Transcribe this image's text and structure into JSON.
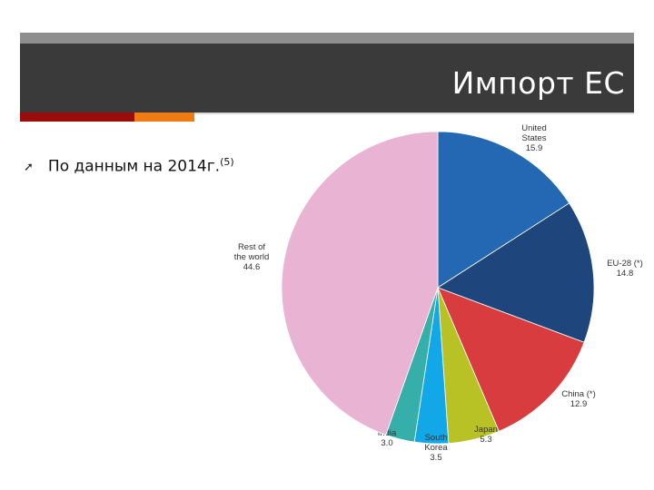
{
  "slide": {
    "title": "Импорт ЕС",
    "bullet_text": "По данным на 2014г.",
    "bullet_sup": "(5)"
  },
  "colors": {
    "title_bar": "#3a3a3a",
    "accent_red": "#9b0d0d",
    "accent_orange": "#f07b12"
  },
  "chart_data": {
    "type": "pie",
    "title": "",
    "slices": [
      {
        "name": "United States",
        "label_lines": [
          "United",
          "States"
        ],
        "value": 15.9,
        "value_text": "15.9",
        "color": "#2468b4"
      },
      {
        "name": "EU-28 (*)",
        "label_lines": [
          "EU-28 (*)"
        ],
        "value": 14.8,
        "value_text": "14.8",
        "color": "#1f467c"
      },
      {
        "name": "China (*)",
        "label_lines": [
          "China (*)"
        ],
        "value": 12.9,
        "value_text": "12.9",
        "color": "#d93c3f"
      },
      {
        "name": "Japan",
        "label_lines": [
          "Japan"
        ],
        "value": 5.3,
        "value_text": "5.3",
        "color": "#b8c224"
      },
      {
        "name": "South Korea",
        "label_lines": [
          "South",
          "Korea"
        ],
        "value": 3.5,
        "value_text": "3.5",
        "color": "#12a7e6"
      },
      {
        "name": "India",
        "label_lines": [
          "India"
        ],
        "value": 3.0,
        "value_text": "3.0",
        "color": "#36afab"
      },
      {
        "name": "Rest of the world",
        "label_lines": [
          "Rest of",
          "the world"
        ],
        "value": 44.6,
        "value_text": "44.6",
        "color": "#e9b3d3"
      }
    ]
  }
}
